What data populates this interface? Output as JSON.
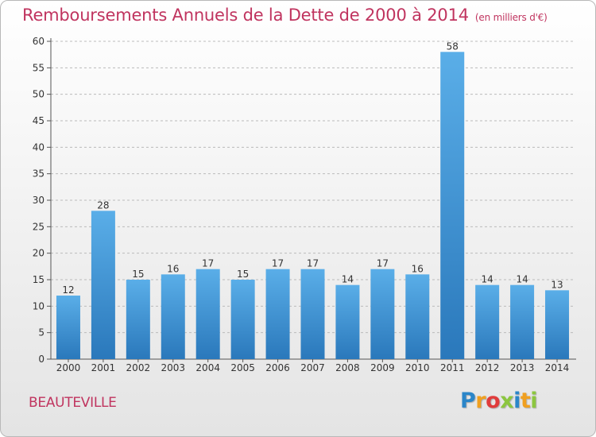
{
  "title": "Remboursements Annuels de la Dette de 2000 à 2014",
  "unit": "(en milliers d'€)",
  "commune": "BEAUTEVILLE",
  "logo": {
    "letters": [
      "P",
      "r",
      "o",
      "x",
      "i",
      "t",
      "i"
    ],
    "colors": [
      "#2b86c9",
      "#f0a020",
      "#e03c3c",
      "#8cc63f",
      "#2b86c9",
      "#f0a020",
      "#8cc63f"
    ]
  },
  "colors": {
    "title": "#c0345f",
    "bar_top": "#5aaee8",
    "bar_bottom": "#2a78bb"
  },
  "chart_data": {
    "type": "bar",
    "categories": [
      "2000",
      "2001",
      "2002",
      "2003",
      "2004",
      "2005",
      "2006",
      "2007",
      "2008",
      "2009",
      "2010",
      "2011",
      "2012",
      "2013",
      "2014"
    ],
    "values": [
      12,
      28,
      15,
      16,
      17,
      15,
      17,
      17,
      14,
      17,
      16,
      58,
      14,
      14,
      13
    ],
    "ylim": [
      0,
      60
    ],
    "yticks": [
      0,
      5,
      10,
      15,
      20,
      25,
      30,
      35,
      40,
      45,
      50,
      55,
      60
    ],
    "grid": "horizontal dashed",
    "data_labels": true
  }
}
